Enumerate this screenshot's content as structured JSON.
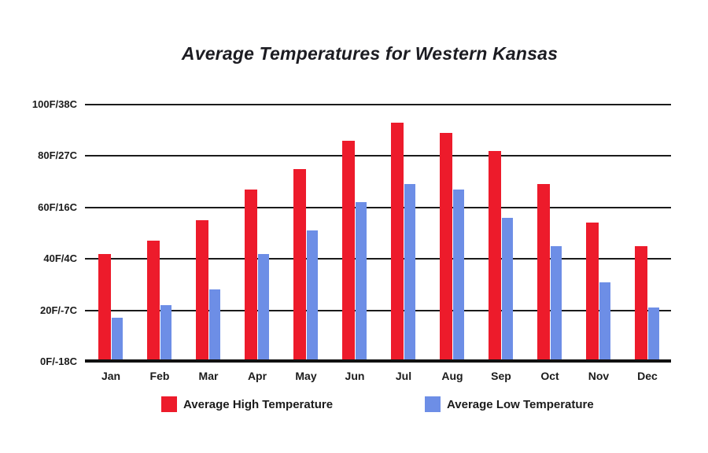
{
  "title": "Average Temperatures for Western Kansas",
  "colors": {
    "high_bar": "#ED1B2B",
    "low_bar": "#6D8EE6",
    "gridline": "#1B1B1B",
    "text": "#1B1B1B",
    "background": "#FFFFFF"
  },
  "y_axis": {
    "tick_labels": [
      "100F/38C",
      "80F/27C",
      "60F/16C",
      "40F/4C",
      "20F/-7C",
      "0F/-18C"
    ],
    "tick_values_f": [
      100,
      80,
      60,
      40,
      20,
      0
    ]
  },
  "legend": {
    "items": [
      {
        "label": "Average High Temperature",
        "series": "high",
        "color": "#ED1B2B"
      },
      {
        "label": "Average Low Temperature",
        "series": "low",
        "color": "#6D8EE6"
      }
    ]
  },
  "chart_data": {
    "type": "bar",
    "categories": [
      "Jan",
      "Feb",
      "Mar",
      "Apr",
      "May",
      "Jun",
      "Jul",
      "Aug",
      "Sep",
      "Oct",
      "Nov",
      "Dec"
    ],
    "series": [
      {
        "name": "Average High Temperature",
        "unit": "F",
        "color": "#ED1B2B",
        "values": [
          42,
          47,
          55,
          67,
          75,
          86,
          93,
          89,
          82,
          69,
          54,
          45
        ]
      },
      {
        "name": "Average Low Temperature",
        "unit": "F",
        "color": "#6D8EE6",
        "values": [
          17,
          22,
          28,
          42,
          51,
          62,
          69,
          67,
          56,
          45,
          31,
          21
        ]
      }
    ],
    "title": "Average Temperatures for Western Kansas",
    "xlabel": "",
    "ylabel": "",
    "ylim": [
      0,
      100
    ],
    "grid": true,
    "legend_position": "bottom"
  }
}
